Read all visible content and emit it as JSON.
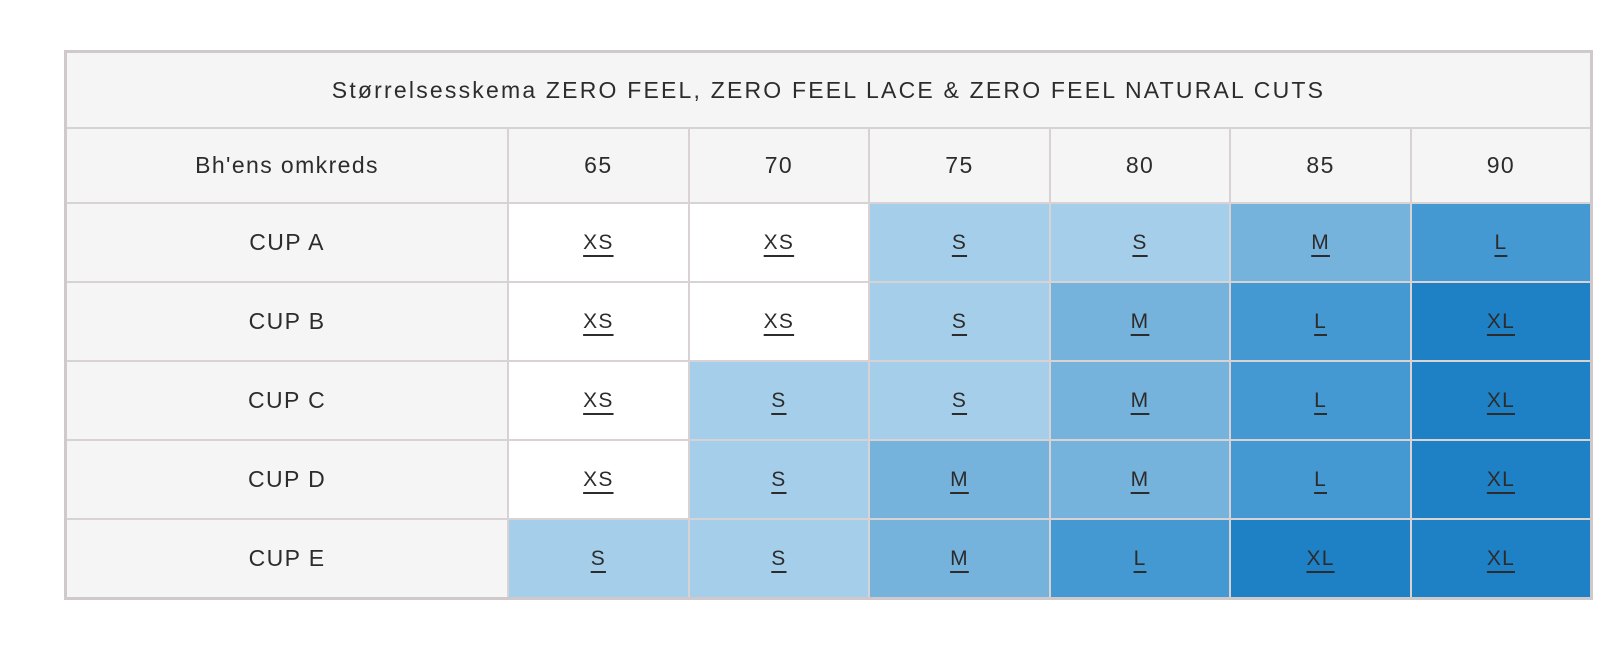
{
  "table": {
    "title": "Størrelsesskema ZERO FEEL, ZERO FEEL LACE & ZERO FEEL NATURAL CUTS",
    "header": {
      "label": "Bh'ens omkreds",
      "columns": [
        "65",
        "70",
        "75",
        "80",
        "85",
        "90"
      ]
    },
    "rows": [
      {
        "label": "CUP A",
        "sizes": [
          "XS",
          "XS",
          "S",
          "S",
          "M",
          "L"
        ]
      },
      {
        "label": "CUP B",
        "sizes": [
          "XS",
          "XS",
          "S",
          "M",
          "L",
          "XL"
        ]
      },
      {
        "label": "CUP C",
        "sizes": [
          "XS",
          "S",
          "S",
          "M",
          "L",
          "XL"
        ]
      },
      {
        "label": "CUP D",
        "sizes": [
          "XS",
          "S",
          "M",
          "M",
          "L",
          "XL"
        ]
      },
      {
        "label": "CUP E",
        "sizes": [
          "S",
          "S",
          "M",
          "L",
          "XL",
          "XL"
        ]
      }
    ],
    "size_colors": {
      "XS": "#ffffff",
      "S": "#a4cee9",
      "M": "#75b3dc",
      "L": "#4599d2",
      "XL": "#1e81c6"
    },
    "colors": {
      "header_background": "#f6f5f5",
      "border": "#d8d2d5",
      "text": "#2d2c2c"
    }
  },
  "chart_data": {
    "type": "table",
    "title": "Størrelsesskema ZERO FEEL, ZERO FEEL LACE & ZERO FEEL NATURAL CUTS",
    "row_header": "Bh'ens omkreds",
    "categories": [
      "65",
      "70",
      "75",
      "80",
      "85",
      "90"
    ],
    "series": [
      {
        "name": "CUP A",
        "values": [
          "XS",
          "XS",
          "S",
          "S",
          "M",
          "L"
        ]
      },
      {
        "name": "CUP B",
        "values": [
          "XS",
          "XS",
          "S",
          "M",
          "L",
          "XL"
        ]
      },
      {
        "name": "CUP C",
        "values": [
          "XS",
          "S",
          "S",
          "M",
          "L",
          "XL"
        ]
      },
      {
        "name": "CUP D",
        "values": [
          "XS",
          "S",
          "M",
          "M",
          "L",
          "XL"
        ]
      },
      {
        "name": "CUP E",
        "values": [
          "S",
          "S",
          "M",
          "L",
          "XL",
          "XL"
        ]
      }
    ]
  }
}
